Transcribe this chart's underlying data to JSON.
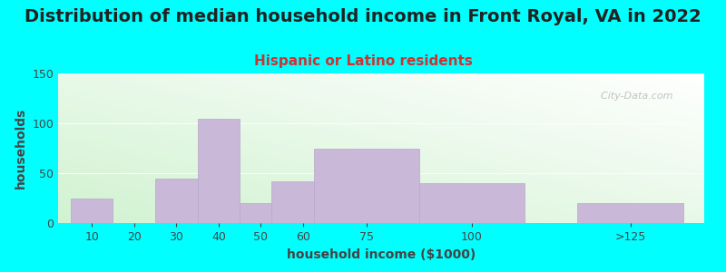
{
  "title": "Distribution of median household income in Front Royal, VA in 2022",
  "subtitle": "Hispanic or Latino residents",
  "xlabel": "household income ($1000)",
  "ylabel": "households",
  "background_color": "#00FFFF",
  "bar_color": "#c9b8d8",
  "bar_edge_color": "#b8a8cc",
  "categories": [
    "10",
    "20",
    "30",
    "40",
    "50",
    "60",
    "75",
    "100",
    ">125"
  ],
  "values": [
    25,
    0,
    45,
    105,
    20,
    42,
    75,
    40,
    20
  ],
  "bar_positions": [
    10,
    20,
    30,
    40,
    50,
    60,
    75,
    100,
    137.5
  ],
  "bar_widths": [
    10,
    10,
    10,
    10,
    10,
    15,
    25,
    25,
    25
  ],
  "xlim": [
    2,
    155
  ],
  "ylim": [
    0,
    150
  ],
  "yticks": [
    0,
    50,
    100,
    150
  ],
  "xticks": [
    10,
    20,
    30,
    40,
    50,
    60,
    75,
    100,
    137.5
  ],
  "watermark": "  City-Data.com",
  "title_fontsize": 14,
  "subtitle_fontsize": 11,
  "axis_label_fontsize": 10,
  "tick_fontsize": 9,
  "title_color": "#222222",
  "subtitle_color": "#cc3333",
  "axis_label_color": "#444444",
  "tick_color": "#444444"
}
